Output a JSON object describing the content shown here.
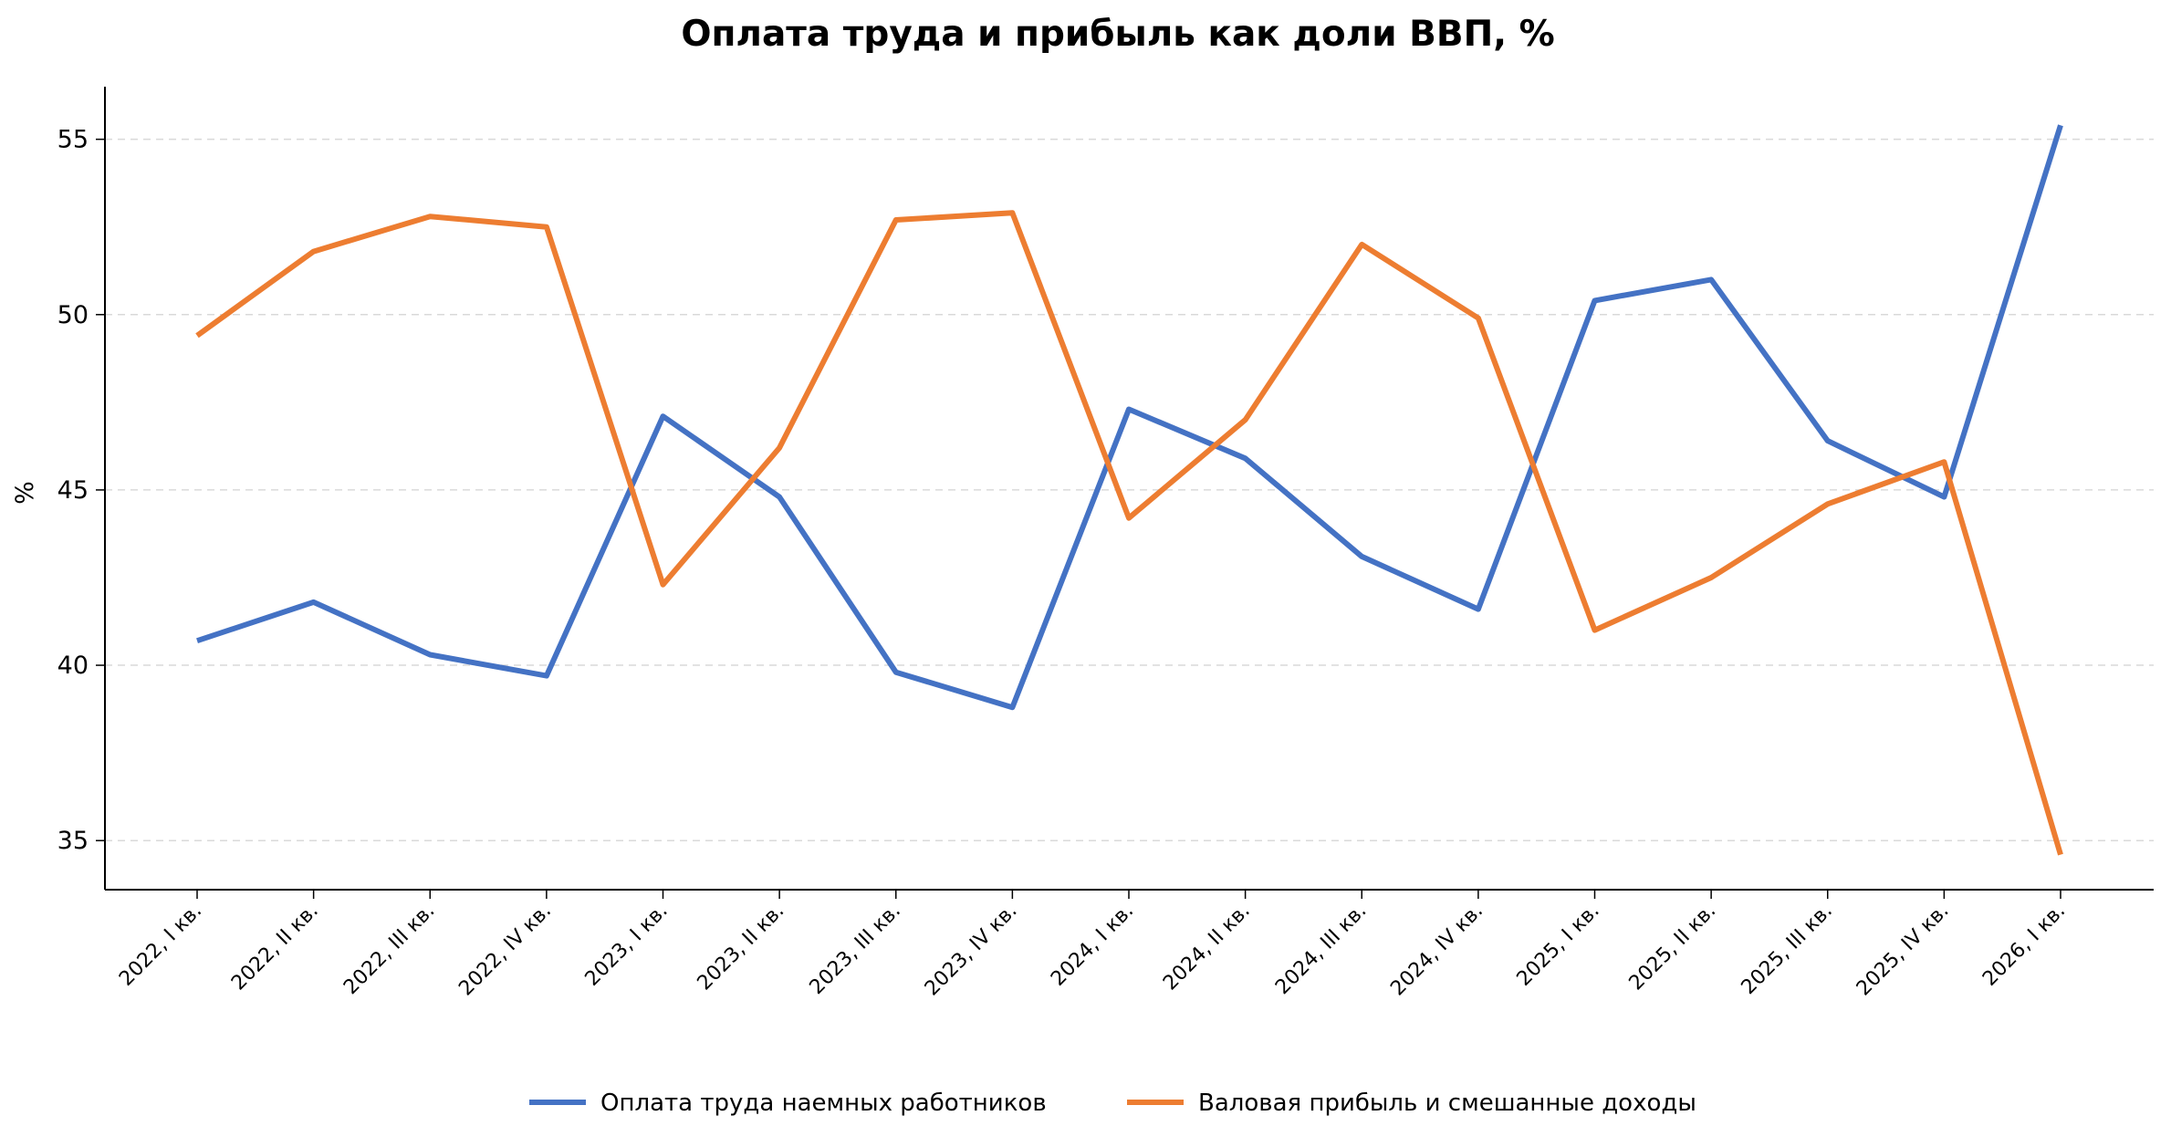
{
  "chart_data": {
    "type": "line",
    "title": "Оплата труда и прибыль как доли ВВП, %",
    "xlabel": "",
    "ylabel": "%",
    "categories": [
      "2022, I кв.",
      "2022, II кв.",
      "2022, III кв.",
      "2022, IV кв.",
      "2023, I кв.",
      "2023, II кв.",
      "2023, III кв.",
      "2023, IV кв.",
      "2024, I кв.",
      "2024, II кв.",
      "2024, III кв.",
      "2024, IV кв.",
      "2025, I кв.",
      "2025, II кв.",
      "2025, III кв.",
      "2025, IV кв.",
      "2026, I кв."
    ],
    "ylim": [
      33.6,
      56.5
    ],
    "yticks": [
      35,
      40,
      45,
      50,
      55
    ],
    "grid": "horizontal-dashed",
    "legend_position": "bottom-center",
    "series": [
      {
        "name": "Оплата труда наемных работников",
        "color": "#4472C4",
        "values": [
          40.7,
          41.8,
          40.3,
          39.7,
          47.1,
          44.8,
          39.8,
          38.8,
          47.3,
          45.9,
          43.1,
          41.6,
          50.4,
          51.0,
          46.4,
          44.8,
          55.4
        ]
      },
      {
        "name": "Валовая прибыль и смешанные доходы",
        "color": "#ED7D31",
        "values": [
          49.4,
          51.8,
          52.8,
          52.5,
          42.3,
          46.2,
          52.7,
          52.9,
          44.2,
          47.0,
          52.0,
          49.9,
          41.0,
          42.5,
          44.6,
          45.8,
          34.6
        ]
      }
    ]
  }
}
